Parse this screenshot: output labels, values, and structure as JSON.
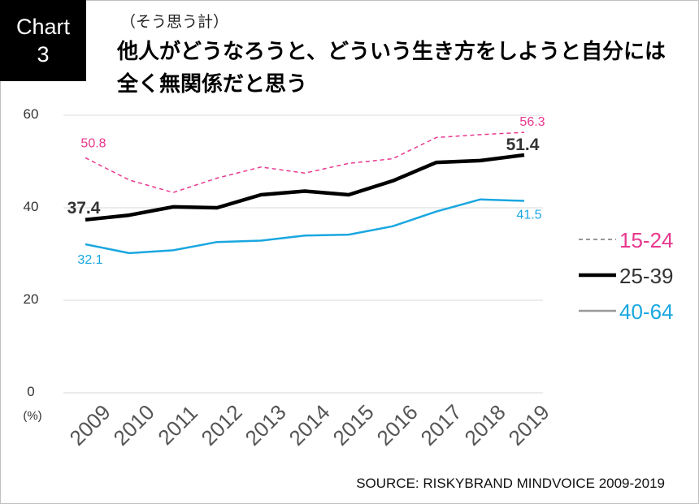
{
  "badge": {
    "line1": "Chart",
    "line2": "3"
  },
  "subtitle": "（そう思う計）",
  "title_line1": "他人がどうなろうと、どういう生き方をしようと自分には",
  "title_line2": "全く無関係だと思う",
  "source": "SOURCE: RISKYBRAND MINDVOICE 2009-2019",
  "chart_data": {
    "type": "line",
    "x": [
      "2009",
      "2010",
      "2011",
      "2012",
      "2013",
      "2014",
      "2015",
      "2016",
      "2017",
      "2018",
      "2019"
    ],
    "ylim": [
      0,
      60
    ],
    "yticks": [
      "60",
      "40",
      "20",
      "0"
    ],
    "yunit": "(%)",
    "grid": true,
    "legend_position": "right",
    "series": [
      {
        "name": "15-24",
        "color": "#e8388f",
        "style": "dashed",
        "values": [
          50.8,
          46.0,
          43.3,
          46.4,
          48.8,
          47.5,
          49.6,
          50.6,
          55.2,
          55.8,
          56.3
        ],
        "labels": [
          {
            "index": 0,
            "text": "50.8"
          },
          {
            "index": 10,
            "text": "56.3"
          }
        ]
      },
      {
        "name": "25-39",
        "color": "#000000",
        "style": "bold",
        "values": [
          37.4,
          38.4,
          40.2,
          40.0,
          42.8,
          43.6,
          42.8,
          45.8,
          49.8,
          50.2,
          51.4
        ],
        "labels": [
          {
            "index": 0,
            "text": "37.4"
          },
          {
            "index": 10,
            "text": "51.4"
          }
        ]
      },
      {
        "name": "40-64",
        "color": "#1aa7e0",
        "style": "solid",
        "values": [
          32.1,
          30.2,
          30.8,
          32.6,
          32.9,
          34.0,
          34.2,
          36.0,
          39.2,
          41.8,
          41.5
        ],
        "labels": [
          {
            "index": 0,
            "text": "32.1"
          },
          {
            "index": 10,
            "text": "41.5"
          }
        ]
      }
    ]
  }
}
